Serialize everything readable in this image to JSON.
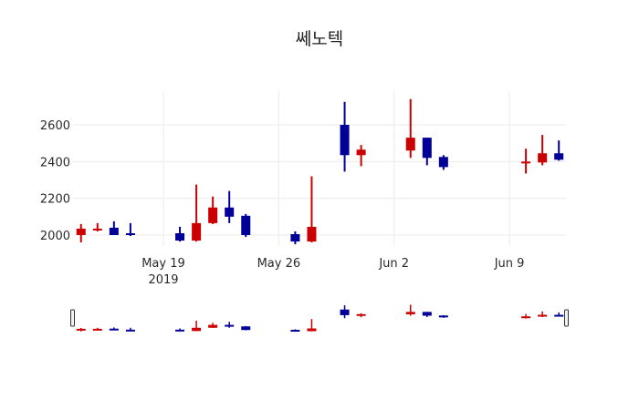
{
  "chart_data": {
    "type": "candlestick",
    "title": "쎄노텍",
    "xlabel": "",
    "ylabel": "",
    "ylim": [
      1925,
      2780
    ],
    "yticks": [
      2000,
      2200,
      2400,
      2600
    ],
    "xticks": [
      {
        "date": "2019-05-19",
        "label": "May 19",
        "sublabel": "2019"
      },
      {
        "date": "2019-05-26",
        "label": "May 26",
        "sublabel": ""
      },
      {
        "date": "2019-06-02",
        "label": "Jun 2",
        "sublabel": ""
      },
      {
        "date": "2019-06-09",
        "label": "Jun 9",
        "sublabel": ""
      }
    ],
    "grid": true,
    "range_slider": true,
    "increasing_color": "#cc0000",
    "decreasing_color": "#000099",
    "x": [
      "2019-05-14",
      "2019-05-15",
      "2019-05-16",
      "2019-05-17",
      "2019-05-20",
      "2019-05-21",
      "2019-05-22",
      "2019-05-23",
      "2019-05-24",
      "2019-05-27",
      "2019-05-28",
      "2019-05-30",
      "2019-05-31",
      "2019-06-03",
      "2019-06-04",
      "2019-06-05",
      "2019-06-10",
      "2019-06-11",
      "2019-06-12"
    ],
    "open": [
      2000,
      2025,
      2040,
      2010,
      2010,
      1970,
      2065,
      2150,
      2105,
      2005,
      1965,
      2600,
      2435,
      2460,
      2530,
      2425,
      2390,
      2395,
      2445
    ],
    "high": [
      2060,
      2065,
      2075,
      2065,
      2045,
      2275,
      2210,
      2240,
      2115,
      2020,
      2320,
      2725,
      2490,
      2740,
      2530,
      2435,
      2470,
      2545,
      2515
    ],
    "low": [
      1960,
      2020,
      2000,
      1995,
      1965,
      1965,
      2060,
      2065,
      1990,
      1950,
      1960,
      2345,
      2375,
      2420,
      2380,
      2355,
      2335,
      2380,
      2405
    ],
    "close": [
      2035,
      2035,
      2000,
      2000,
      1970,
      2065,
      2150,
      2100,
      2000,
      1965,
      2045,
      2435,
      2465,
      2530,
      2420,
      2370,
      2400,
      2445,
      2410
    ]
  }
}
